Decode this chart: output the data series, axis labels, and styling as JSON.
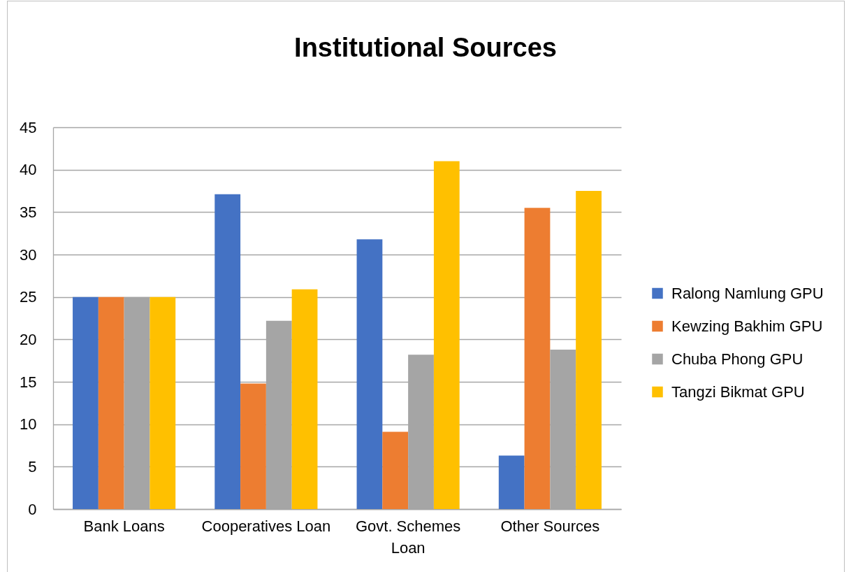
{
  "chart_data": {
    "type": "bar",
    "title": "Institutional Sources",
    "categories": [
      "Bank Loans",
      "Cooperatives Loan",
      "Govt. Schemes Loan",
      "Other Sources"
    ],
    "series": [
      {
        "name": "Ralong Namlung GPU",
        "color": "#4472c4",
        "values": [
          25,
          37.1,
          31.8,
          6.3
        ]
      },
      {
        "name": "Kewzing Bakhim GPU",
        "color": "#ed7d31",
        "values": [
          25,
          14.8,
          9.1,
          35.5
        ]
      },
      {
        "name": "Chuba Phong GPU",
        "color": "#a5a5a5",
        "values": [
          25,
          22.2,
          18.2,
          18.8
        ]
      },
      {
        "name": "Tangzi Bikmat GPU",
        "color": "#ffc000",
        "values": [
          25,
          25.9,
          41,
          37.5
        ]
      }
    ],
    "ylim": [
      0,
      45
    ],
    "yticks": [
      0,
      5,
      10,
      15,
      20,
      25,
      30,
      35,
      40,
      45
    ],
    "grid": "y",
    "legend": "right"
  }
}
